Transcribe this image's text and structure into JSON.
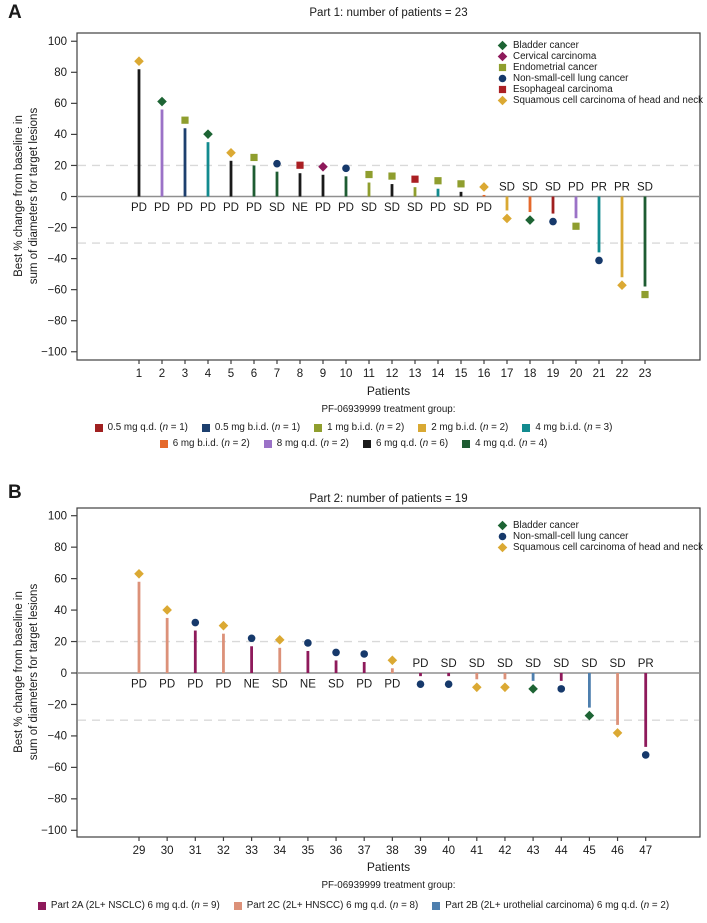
{
  "figure": {
    "panels": [
      {
        "panel_label": "A"
      },
      {
        "panel_label": "B"
      }
    ]
  },
  "chart_data": [
    {
      "type": "bar",
      "subtype": "waterfall",
      "title": "Part 1: number of patients = 23",
      "xlabel": "Patients",
      "ylabel_line1": "Best % change from baseline in",
      "ylabel_line2": "sum of diameters for target lesions",
      "ylim": [
        -100,
        100
      ],
      "yticks": [
        100,
        80,
        60,
        40,
        20,
        0,
        -20,
        -40,
        -60,
        -80,
        -100
      ],
      "reference_lines": [
        20,
        -30
      ],
      "grid": "dashed reference lines at +20 and -30 only",
      "legend_position": "top-right inside plot",
      "cancer_types": {
        "bladder": {
          "label": "Bladder cancer",
          "shape": "diamond",
          "color": "#1d6434"
        },
        "cervical": {
          "label": "Cervical carcinoma",
          "shape": "diamond",
          "color": "#8e1a5b"
        },
        "endometrial": {
          "label": "Endometrial cancer",
          "shape": "square",
          "color": "#8f9e2e"
        },
        "nsclc": {
          "label": "Non-small-cell lung cancer",
          "shape": "circle",
          "color": "#16396b"
        },
        "esophageal": {
          "label": "Esophageal carcinoma",
          "shape": "square",
          "color": "#aa1f23"
        },
        "scchn": {
          "label": "Squamous cell carcinoma of head and neck",
          "shape": "diamond",
          "color": "#dba933"
        }
      },
      "cancer_legend_order": [
        "bladder",
        "cervical",
        "endometrial",
        "nsclc",
        "esophageal",
        "scchn"
      ],
      "treatment_legend_title": "PF-06939999 treatment group:",
      "treatment_groups": {
        "05qd": {
          "label": "0.5 mg q.d.",
          "n": 1,
          "color": "#a02020"
        },
        "05bid": {
          "label": "0.5 mg b.i.d.",
          "n": 1,
          "color": "#1d3f6e"
        },
        "1bid": {
          "label": "1 mg b.i.d.",
          "n": 2,
          "color": "#8f9e2e"
        },
        "2bid": {
          "label": "2 mg b.i.d.",
          "n": 2,
          "color": "#d9a933"
        },
        "4bid": {
          "label": "4 mg b.i.d.",
          "n": 3,
          "color": "#128b8f"
        },
        "6bid": {
          "label": "6 mg b.i.d.",
          "n": 2,
          "color": "#e5692b"
        },
        "8qd": {
          "label": "8 mg q.d.",
          "n": 2,
          "color": "#9b72c7"
        },
        "6qd": {
          "label": "6 mg q.d.",
          "n": 6,
          "color": "#1a1a1a"
        },
        "4qd": {
          "label": "4 mg q.d.",
          "n": 4,
          "color": "#1e5c32"
        }
      },
      "treatment_legend_rows": [
        [
          "05qd",
          "05bid",
          "1bid",
          "2bid",
          "4bid"
        ],
        [
          "6bid",
          "8qd",
          "6qd",
          "4qd"
        ]
      ],
      "patients": [
        {
          "id": 1,
          "value": 82,
          "response": "PD",
          "cancer": "scchn",
          "group": "6qd"
        },
        {
          "id": 2,
          "value": 56,
          "response": "PD",
          "cancer": "bladder",
          "group": "8qd"
        },
        {
          "id": 3,
          "value": 44,
          "response": "PD",
          "cancer": "endometrial",
          "group": "05bid"
        },
        {
          "id": 4,
          "value": 35,
          "response": "PD",
          "cancer": "bladder",
          "group": "4bid"
        },
        {
          "id": 5,
          "value": 23,
          "response": "PD",
          "cancer": "scchn",
          "group": "6qd"
        },
        {
          "id": 6,
          "value": 20,
          "response": "PD",
          "cancer": "endometrial",
          "group": "4qd"
        },
        {
          "id": 7,
          "value": 16,
          "response": "SD",
          "cancer": "nsclc",
          "group": "4qd"
        },
        {
          "id": 8,
          "value": 15,
          "response": "NE",
          "cancer": "esophageal",
          "group": "6qd"
        },
        {
          "id": 9,
          "value": 14,
          "response": "PD",
          "cancer": "cervical",
          "group": "6qd"
        },
        {
          "id": 10,
          "value": 13,
          "response": "PD",
          "cancer": "nsclc",
          "group": "4qd"
        },
        {
          "id": 11,
          "value": 9,
          "response": "SD",
          "cancer": "endometrial",
          "group": "1bid"
        },
        {
          "id": 12,
          "value": 8,
          "response": "SD",
          "cancer": "endometrial",
          "group": "6qd"
        },
        {
          "id": 13,
          "value": 6,
          "response": "SD",
          "cancer": "esophageal",
          "group": "1bid"
        },
        {
          "id": 14,
          "value": 5,
          "response": "PD",
          "cancer": "endometrial",
          "group": "4bid"
        },
        {
          "id": 15,
          "value": 3,
          "response": "SD",
          "cancer": "endometrial",
          "group": "6qd"
        },
        {
          "id": 16,
          "value": 1,
          "response": "PD",
          "cancer": "scchn",
          "group": "6bid"
        },
        {
          "id": 17,
          "value": -9,
          "response": "SD",
          "cancer": "scchn",
          "group": "2bid"
        },
        {
          "id": 18,
          "value": -10,
          "response": "SD",
          "cancer": "bladder",
          "group": "6bid"
        },
        {
          "id": 19,
          "value": -11,
          "response": "SD",
          "cancer": "nsclc",
          "group": "05qd"
        },
        {
          "id": 20,
          "value": -14,
          "response": "PD",
          "cancer": "endometrial",
          "group": "8qd"
        },
        {
          "id": 21,
          "value": -36,
          "response": "PR",
          "cancer": "nsclc",
          "group": "4bid"
        },
        {
          "id": 22,
          "value": -52,
          "response": "PR",
          "cancer": "scchn",
          "group": "2bid"
        },
        {
          "id": 23,
          "value": -58,
          "response": "SD",
          "cancer": "endometrial",
          "group": "4qd"
        }
      ]
    },
    {
      "type": "bar",
      "subtype": "waterfall",
      "title": "Part 2: number of patients = 19",
      "xlabel": "Patients",
      "ylabel_line1": "Best % change from baseline in",
      "ylabel_line2": "sum of diameters for target lesions",
      "ylim": [
        -100,
        100
      ],
      "yticks": [
        100,
        80,
        60,
        40,
        20,
        0,
        -20,
        -40,
        -60,
        -80,
        -100
      ],
      "reference_lines": [
        20,
        -30
      ],
      "grid": "dashed reference lines at +20 and -30 only",
      "legend_position": "top-right inside plot",
      "cancer_types": {
        "bladder": {
          "label": "Bladder cancer",
          "shape": "diamond",
          "color": "#1d6434"
        },
        "nsclc": {
          "label": "Non-small-cell lung cancer",
          "shape": "circle",
          "color": "#16396b"
        },
        "scchn": {
          "label": "Squamous cell carcinoma of head and neck",
          "shape": "diamond",
          "color": "#dba933"
        }
      },
      "cancer_legend_order": [
        "bladder",
        "nsclc",
        "scchn"
      ],
      "treatment_legend_title": "PF-06939999 treatment group:",
      "treatment_groups": {
        "2A": {
          "label": "Part 2A (2L+ NSCLC) 6 mg q.d.",
          "n": 9,
          "color": "#8e1a5b"
        },
        "2C": {
          "label": "Part 2C (2L+ HNSCC) 6 mg q.d.",
          "n": 8,
          "color": "#dc9179"
        },
        "2B": {
          "label": "Part 2B (2L+ urothelial carcinoma) 6 mg q.d.",
          "n": 2,
          "color": "#4e7fae"
        }
      },
      "treatment_legend_rows": [
        [
          "2A",
          "2C",
          "2B"
        ]
      ],
      "patients": [
        {
          "id": 29,
          "value": 58,
          "response": "PD",
          "cancer": "scchn",
          "group": "2C"
        },
        {
          "id": 30,
          "value": 35,
          "response": "PD",
          "cancer": "scchn",
          "group": "2C"
        },
        {
          "id": 31,
          "value": 27,
          "response": "PD",
          "cancer": "nsclc",
          "group": "2A"
        },
        {
          "id": 32,
          "value": 25,
          "response": "PD",
          "cancer": "scchn",
          "group": "2C"
        },
        {
          "id": 33,
          "value": 17,
          "response": "NE",
          "cancer": "nsclc",
          "group": "2A"
        },
        {
          "id": 34,
          "value": 16,
          "response": "SD",
          "cancer": "scchn",
          "group": "2C"
        },
        {
          "id": 35,
          "value": 14,
          "response": "NE",
          "cancer": "nsclc",
          "group": "2A"
        },
        {
          "id": 36,
          "value": 8,
          "response": "SD",
          "cancer": "nsclc",
          "group": "2A"
        },
        {
          "id": 37,
          "value": 7,
          "response": "PD",
          "cancer": "nsclc",
          "group": "2A"
        },
        {
          "id": 38,
          "value": 3,
          "response": "PD",
          "cancer": "scchn",
          "group": "2C"
        },
        {
          "id": 39,
          "value": -2,
          "response": "PD",
          "cancer": "nsclc",
          "group": "2A"
        },
        {
          "id": 40,
          "value": -2,
          "response": "SD",
          "cancer": "nsclc",
          "group": "2A"
        },
        {
          "id": 41,
          "value": -4,
          "response": "SD",
          "cancer": "scchn",
          "group": "2C"
        },
        {
          "id": 42,
          "value": -4,
          "response": "SD",
          "cancer": "scchn",
          "group": "2C"
        },
        {
          "id": 43,
          "value": -5,
          "response": "SD",
          "cancer": "bladder",
          "group": "2B"
        },
        {
          "id": 44,
          "value": -5,
          "response": "SD",
          "cancer": "nsclc",
          "group": "2A"
        },
        {
          "id": 45,
          "value": -22,
          "response": "SD",
          "cancer": "bladder",
          "group": "2B"
        },
        {
          "id": 46,
          "value": -33,
          "response": "SD",
          "cancer": "scchn",
          "group": "2C"
        },
        {
          "id": 47,
          "value": -47,
          "response": "PR",
          "cancer": "nsclc",
          "group": "2A"
        }
      ]
    }
  ]
}
